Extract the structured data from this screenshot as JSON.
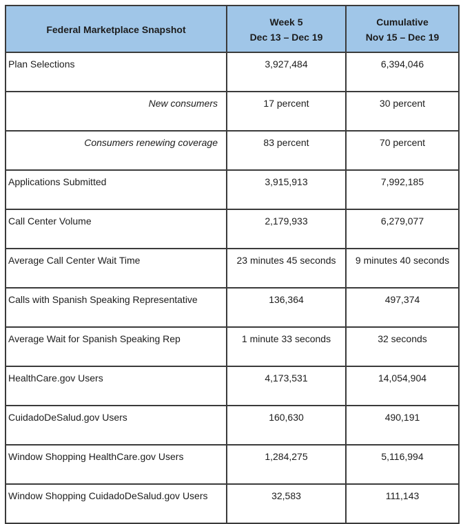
{
  "colors": {
    "header_bg": "#A0C6E8",
    "border": "#3a3a3a"
  },
  "table": {
    "header": {
      "title": "Federal Marketplace Snapshot",
      "week_line1": "Week 5",
      "week_line2": "Dec 13 – Dec 19",
      "cumulative_line1": "Cumulative",
      "cumulative_line2": "Nov 15 – Dec 19"
    },
    "rows": [
      {
        "label": "Plan Selections",
        "week": "3,927,484",
        "cumulative": "6,394,046"
      },
      {
        "label": "New consumers",
        "week": "17 percent",
        "cumulative": "30 percent"
      },
      {
        "label": "Consumers renewing coverage",
        "week": "83 percent",
        "cumulative": "70 percent"
      },
      {
        "label": "Applications Submitted",
        "week": "3,915,913",
        "cumulative": "7,992,185"
      },
      {
        "label": "Call Center Volume",
        "week": "2,179,933",
        "cumulative": "6,279,077"
      },
      {
        "label": "Average Call Center Wait Time",
        "week": "23 minutes 45 seconds",
        "cumulative": "9 minutes 40 seconds"
      },
      {
        "label": "Calls with Spanish Speaking Representative",
        "week": "136,364",
        "cumulative": "497,374"
      },
      {
        "label": "Average Wait for Spanish Speaking Rep",
        "week": "1 minute 33 seconds",
        "cumulative": "32 seconds"
      },
      {
        "label": "HealthCare.gov Users",
        "week": "4,173,531",
        "cumulative": "14,054,904"
      },
      {
        "label": "CuidadoDeSalud.gov Users",
        "week": "160,630",
        "cumulative": "490,191"
      },
      {
        "label": "Window Shopping HealthCare.gov Users",
        "week": "1,284,275",
        "cumulative": "5,116,994"
      },
      {
        "label": "Window Shopping CuidadoDeSalud.gov Users",
        "week": "32,583",
        "cumulative": "111,143"
      }
    ]
  }
}
